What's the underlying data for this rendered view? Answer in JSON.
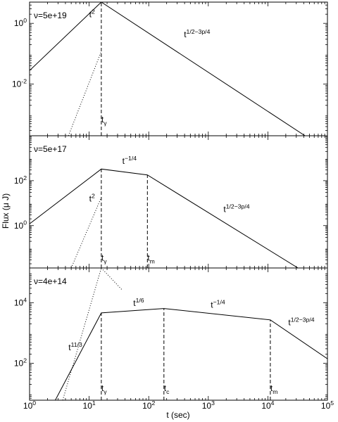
{
  "chart_data": [
    {
      "type": "line",
      "panel": "top",
      "xscale": "log",
      "yscale": "log",
      "xlim": [
        1,
        100000
      ],
      "ylim": [
        0.0002,
        5
      ],
      "yticks": [
        {
          "value": 1,
          "base": "10",
          "exp": "0"
        },
        {
          "value": 0.01,
          "base": "10",
          "exp": "-2"
        }
      ],
      "label": {
        "text": "ν=5e+19"
      },
      "series": [
        {
          "style": "solid",
          "x": [
            1,
            16,
            42000
          ],
          "y": [
            0.028,
            5,
            0.0002
          ]
        },
        {
          "style": "dotted",
          "x": [
            4.5,
            16
          ],
          "y": [
            0.0002,
            0.12
          ]
        }
      ],
      "vlines": [
        {
          "x": 16,
          "from": 0.0002,
          "to": 5
        }
      ],
      "annotations": [
        {
          "base": "t",
          "sup": "2",
          "x": 10,
          "y": 1.6
        },
        {
          "base": "t",
          "sup": "1/2−3p/4",
          "x": 390,
          "y": 0.35
        },
        {
          "base": "t",
          "sub": "γ",
          "x": 16,
          "y": 0.00055
        }
      ]
    },
    {
      "type": "line",
      "panel": "middle",
      "xscale": "log",
      "yscale": "log",
      "xlim": [
        1,
        100000
      ],
      "ylim": [
        0.013,
        10000
      ],
      "yticks": [
        {
          "value": 100,
          "base": "10",
          "exp": "2"
        },
        {
          "value": 1,
          "base": "10",
          "exp": "0"
        }
      ],
      "label": {
        "text": "ν=5e+17"
      },
      "series": [
        {
          "style": "solid",
          "x": [
            1,
            16,
            95,
            32000
          ],
          "y": [
            1.2,
            330,
            180,
            0.013
          ]
        },
        {
          "style": "dotted",
          "x": [
            5,
            16
          ],
          "y": [
            0.013,
            18
          ]
        }
      ],
      "vlines": [
        {
          "x": 16,
          "from": 0.013,
          "to": 330
        },
        {
          "x": 95,
          "from": 0.013,
          "to": 180
        }
      ],
      "annotations": [
        {
          "base": "t",
          "sup": "2",
          "x": 10,
          "y": 12
        },
        {
          "base": "t",
          "sup": "−1/4",
          "x": 36,
          "y": 560
        },
        {
          "base": "t",
          "sup": "1/2−3p/4",
          "x": 1800,
          "y": 4
        },
        {
          "base": "t",
          "sub": "γ",
          "x": 16,
          "y": 0.028
        },
        {
          "base": "t",
          "sub": "m",
          "x": 95,
          "y": 0.028
        }
      ]
    },
    {
      "type": "line",
      "panel": "bottom",
      "xscale": "log",
      "yscale": "log",
      "xlim": [
        1,
        100000
      ],
      "ylim": [
        6,
        140000
      ],
      "yticks": [
        {
          "value": 10000,
          "base": "10",
          "exp": "4"
        },
        {
          "value": 100,
          "base": "10",
          "exp": "2"
        }
      ],
      "label": {
        "text": "ν=4e+14"
      },
      "xlabel": "t (sec)",
      "xticks": [
        {
          "value": 1,
          "base": "10",
          "exp": "0"
        },
        {
          "value": 10,
          "base": "10",
          "exp": "1"
        },
        {
          "value": 100,
          "base": "10",
          "exp": "2"
        },
        {
          "value": 1000,
          "base": "10",
          "exp": "3"
        },
        {
          "value": 10000,
          "base": "10",
          "exp": "4"
        },
        {
          "value": 100000,
          "base": "10",
          "exp": "5"
        }
      ],
      "series": [
        {
          "style": "solid",
          "x": [
            2.7,
            16,
            180,
            11000,
            100000
          ],
          "y": [
            6,
            4600,
            6400,
            2700,
            140
          ]
        },
        {
          "style": "dotted",
          "x": [
            3.6,
            16
          ],
          "y": [
            6,
            140000
          ]
        },
        {
          "style": "dotted",
          "x": [
            16,
            36
          ],
          "y": [
            140000,
            26000
          ]
        }
      ],
      "vlines": [
        {
          "x": 16,
          "from": 6,
          "to": 4600
        },
        {
          "x": 180,
          "from": 6,
          "to": 6400
        },
        {
          "x": 11000,
          "from": 6,
          "to": 2700
        }
      ],
      "annotations": [
        {
          "base": "t",
          "sup": "11/3",
          "x": 4.5,
          "y": 270
        },
        {
          "base": "t",
          "sup": "1/6",
          "x": 55,
          "y": 7800
        },
        {
          "base": "t",
          "sup": "−1/4",
          "x": 1100,
          "y": 6800
        },
        {
          "base": "t",
          "sup": "1/2−3p/4",
          "x": 22000,
          "y": 1800
        },
        {
          "base": "t",
          "sub": "γ",
          "x": 16,
          "y": 12
        },
        {
          "base": "t",
          "sub": "c",
          "x": 180,
          "y": 12
        },
        {
          "base": "t",
          "sub": "m",
          "x": 11000,
          "y": 12
        }
      ]
    }
  ],
  "shared": {
    "ylabel": "Flux (μ J)"
  }
}
